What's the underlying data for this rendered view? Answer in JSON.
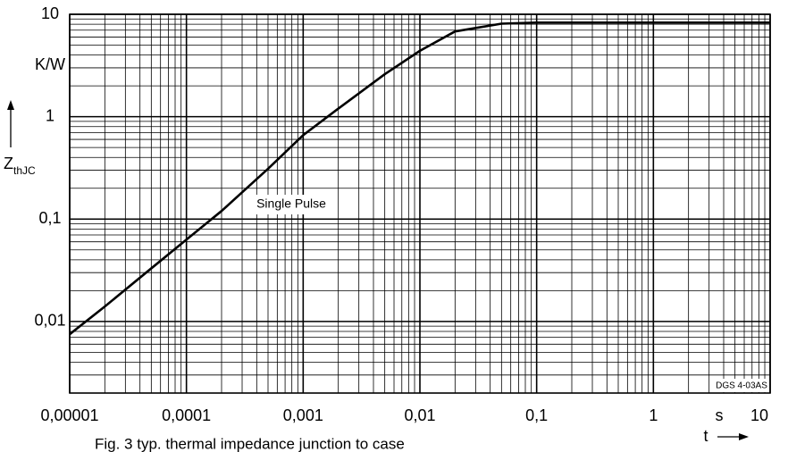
{
  "chart_data": {
    "type": "line",
    "log_x": true,
    "log_y": true,
    "grid": true,
    "minor_grid": true,
    "xlim": [
      1e-05,
      10
    ],
    "xticks": [
      {
        "value": 1e-05,
        "label": "0,00001"
      },
      {
        "value": 0.0001,
        "label": "0,0001"
      },
      {
        "value": 0.001,
        "label": "0,001"
      },
      {
        "value": 0.01,
        "label": "0,01"
      },
      {
        "value": 0.1,
        "label": "0,1"
      },
      1,
      10
    ],
    "ylim": [
      0.002,
      10
    ],
    "yticks": [
      {
        "value": 0.01,
        "label": "0,01"
      },
      {
        "value": 0.1,
        "label": "0,1"
      },
      1,
      10
    ],
    "x_unit": "s",
    "xlabel": "t",
    "y_unit": "K/W",
    "ylabel": {
      "main": "Z",
      "sub": "thJC"
    },
    "annotation": "Single Pulse",
    "code": "DGS 4-03AS",
    "caption": "Fig. 3  typ. thermal impedance junction to case",
    "x": [
      1e-05,
      2e-05,
      5e-05,
      0.0001,
      0.0002,
      0.0005,
      0.001,
      0.002,
      0.005,
      0.01,
      0.02,
      0.05,
      0.1,
      1,
      10
    ],
    "series": [
      {
        "color": "#000000",
        "values": [
          0.0075,
          0.014,
          0.033,
          0.063,
          0.12,
          0.31,
          0.66,
          1.2,
          2.6,
          4.4,
          6.8,
          8.1,
          8.3,
          8.3,
          8.3
        ]
      }
    ]
  }
}
